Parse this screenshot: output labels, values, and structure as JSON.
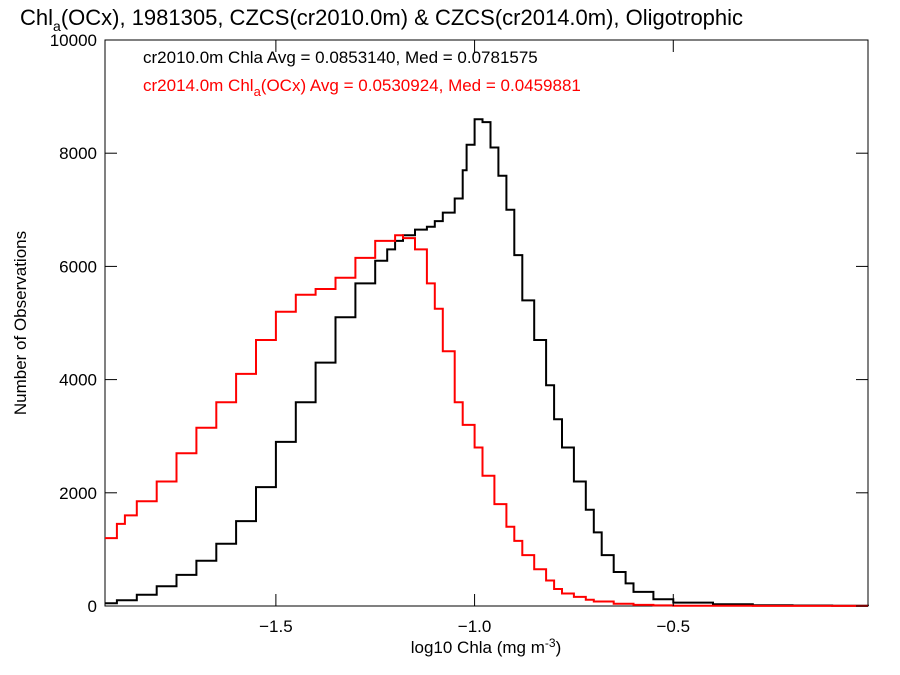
{
  "chart_data": {
    "type": "line",
    "title": {
      "pre": "Chl",
      "sub": "a",
      "post": "(OCx), 1981305, CZCS(cr2010.0m) & CZCS(cr2014.0m), Oligotrophic"
    },
    "xlabel": {
      "pre": "log10 Chla (mg m",
      "sup": "-3",
      "post": ")"
    },
    "ylabel": "Number of Observations",
    "xlim": [
      -1.93,
      -0.01
    ],
    "ylim": [
      0,
      10000
    ],
    "xticks": [
      {
        "value": -1.5,
        "label": "−1.5"
      },
      {
        "value": -1.0,
        "label": "−1.0"
      },
      {
        "value": -0.5,
        "label": "−0.5"
      }
    ],
    "yticks": [
      {
        "value": 0,
        "label": "0"
      },
      {
        "value": 2000,
        "label": "2000"
      },
      {
        "value": 4000,
        "label": "4000"
      },
      {
        "value": 6000,
        "label": "6000"
      },
      {
        "value": 8000,
        "label": "8000"
      },
      {
        "value": 10000,
        "label": "10000"
      }
    ],
    "grid": false,
    "legend_position": "top-left",
    "series": [
      {
        "color": "#000000",
        "legend": {
          "pre": "cr2010.0m Chla Avg = 0.0853140, Med = 0.0781575"
        },
        "x": [
          -1.93,
          -1.9,
          -1.85,
          -1.8,
          -1.75,
          -1.7,
          -1.65,
          -1.6,
          -1.55,
          -1.5,
          -1.45,
          -1.4,
          -1.35,
          -1.3,
          -1.25,
          -1.22,
          -1.2,
          -1.18,
          -1.15,
          -1.12,
          -1.1,
          -1.08,
          -1.05,
          -1.03,
          -1.02,
          -1.0,
          -0.98,
          -0.96,
          -0.94,
          -0.92,
          -0.9,
          -0.88,
          -0.85,
          -0.82,
          -0.8,
          -0.78,
          -0.75,
          -0.72,
          -0.7,
          -0.68,
          -0.65,
          -0.62,
          -0.6,
          -0.55,
          -0.5,
          -0.4,
          -0.3,
          -0.2,
          -0.1,
          -0.01
        ],
        "y": [
          50,
          100,
          200,
          350,
          550,
          800,
          1100,
          1500,
          2100,
          2900,
          3600,
          4300,
          5100,
          5700,
          6100,
          6300,
          6450,
          6550,
          6650,
          6700,
          6800,
          6950,
          7200,
          7700,
          8150,
          8600,
          8550,
          8100,
          7600,
          7000,
          6200,
          5400,
          4700,
          3900,
          3300,
          2800,
          2200,
          1700,
          1300,
          900,
          600,
          400,
          250,
          120,
          60,
          30,
          15,
          8,
          5,
          3
        ]
      },
      {
        "color": "#ff0000",
        "legend": {
          "pre": "cr2014.0m Chl",
          "sub": "a",
          "post": "(OCx) Avg = 0.0530924, Med = 0.0459881"
        },
        "x": [
          -1.93,
          -1.9,
          -1.88,
          -1.85,
          -1.8,
          -1.75,
          -1.7,
          -1.65,
          -1.6,
          -1.55,
          -1.5,
          -1.45,
          -1.4,
          -1.35,
          -1.3,
          -1.25,
          -1.2,
          -1.18,
          -1.15,
          -1.12,
          -1.1,
          -1.08,
          -1.05,
          -1.03,
          -1.0,
          -0.98,
          -0.95,
          -0.92,
          -0.9,
          -0.88,
          -0.85,
          -0.82,
          -0.8,
          -0.78,
          -0.75,
          -0.72,
          -0.7,
          -0.65,
          -0.6,
          -0.55,
          -0.5,
          -0.4,
          -0.3,
          -0.2,
          -0.1,
          -0.01
        ],
        "y": [
          1200,
          1450,
          1600,
          1850,
          2200,
          2700,
          3150,
          3600,
          4100,
          4700,
          5200,
          5500,
          5600,
          5800,
          6150,
          6450,
          6550,
          6500,
          6300,
          5700,
          5250,
          4500,
          3600,
          3200,
          2800,
          2300,
          1800,
          1400,
          1150,
          900,
          650,
          450,
          300,
          220,
          160,
          110,
          80,
          40,
          20,
          10,
          5,
          3,
          2,
          1,
          1,
          1
        ]
      }
    ]
  }
}
